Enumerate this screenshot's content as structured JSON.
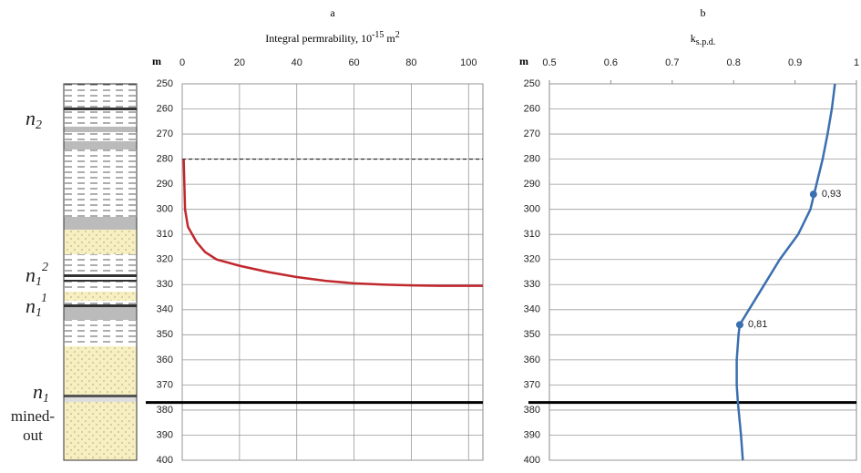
{
  "chart_data": [
    {
      "type": "line",
      "title": "a",
      "xlabel": {
        "base": "Integral permrability, 10",
        "exp": "-15",
        "unit": " m",
        "unit_exp": "2"
      },
      "ylabel": "m",
      "xlim": [
        0,
        105
      ],
      "xticks": [
        0,
        20,
        40,
        60,
        80,
        100
      ],
      "ylim": [
        250,
        400
      ],
      "yticks": [
        250,
        260,
        270,
        280,
        290,
        300,
        310,
        320,
        330,
        340,
        350,
        360,
        370,
        380,
        390,
        400
      ],
      "y_reversed": true,
      "xgrid": true,
      "ygrid": true,
      "hlines": [
        {
          "value": 280,
          "style": "dashed"
        },
        {
          "value": 377,
          "style": "thick"
        }
      ],
      "series": [
        {
          "color": "#c0282d",
          "x": [
            0.5,
            1,
            2,
            5,
            8,
            12,
            20,
            30,
            40,
            50,
            60,
            70,
            80,
            90,
            105
          ],
          "values": [
            280,
            300,
            307,
            313,
            317,
            320,
            322.5,
            325,
            327,
            328.5,
            329.5,
            330,
            330.3,
            330.5,
            330.5
          ]
        }
      ]
    },
    {
      "type": "line",
      "title": "b",
      "xlabel": {
        "base": "k",
        "sub": "s.p.d."
      },
      "ylabel": "m",
      "xlim": [
        0.5,
        1
      ],
      "xticks": [
        0.5,
        0.6,
        0.7,
        0.8,
        0.9,
        1
      ],
      "ylim": [
        250,
        400
      ],
      "yticks": [
        250,
        260,
        270,
        280,
        290,
        300,
        310,
        320,
        330,
        340,
        350,
        360,
        370,
        380,
        390,
        400
      ],
      "y_reversed": true,
      "xgrid": false,
      "ygrid": true,
      "hlines": [
        {
          "value": 377,
          "style": "thick"
        }
      ],
      "series": [
        {
          "color": "#3a6fb0",
          "x": [
            0.965,
            0.96,
            0.953,
            0.945,
            0.935,
            0.93,
            0.925,
            0.905,
            0.875,
            0.85,
            0.825,
            0.81,
            0.808,
            0.805,
            0.805,
            0.807,
            0.812,
            0.815
          ],
          "values": [
            250,
            260,
            270,
            280,
            290,
            295,
            300,
            310,
            320,
            330,
            340,
            346,
            350,
            360,
            370,
            377,
            390,
            400
          ]
        }
      ],
      "points": {
        "values": [
          0.93,
          0.81
        ],
        "depth": [
          294,
          346
        ],
        "value_labels": [
          "0,93",
          "0,81"
        ]
      }
    }
  ],
  "lithology": {
    "labels": [
      {
        "base": "n",
        "sub": "2"
      },
      {
        "base": "n",
        "sub": "1",
        "sup": "2"
      },
      {
        "base": "n",
        "sub": "1",
        "sup": "1"
      },
      {
        "base": "n",
        "sub": "1"
      }
    ],
    "note": [
      "mined-",
      "out"
    ]
  }
}
